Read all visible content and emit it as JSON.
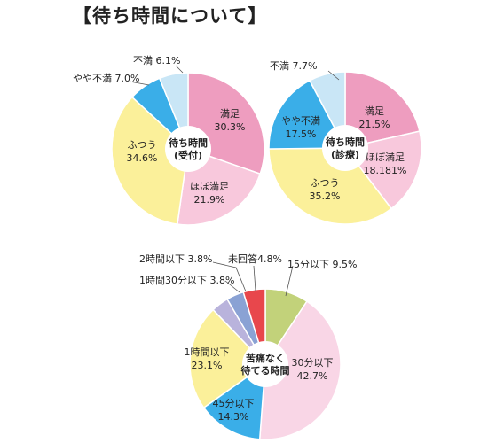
{
  "page": {
    "title": "【待ち時間について】"
  },
  "colors": {
    "manzoku": "#ee9dbf",
    "hobo_manzoku": "#f8c8dc",
    "futsuu": "#fbf09a",
    "yaya_fuman": "#3aaee8",
    "fuman": "#c9e6f6",
    "min15": "#c2d27a",
    "min30": "#f9d6e6",
    "min45": "#3aaee8",
    "hour1": "#fbf09a",
    "hour1_30": "#b9b3dc",
    "hour2": "#8aa2d4",
    "no_answer": "#e8474c",
    "stroke": "#ffffff"
  },
  "chart_data": [
    {
      "type": "pie",
      "center_label": [
        "待ち時間",
        "(受付)"
      ],
      "slices": [
        {
          "label": "満足",
          "value_text": "30.3%",
          "value": 30.3,
          "color_key": "manzoku"
        },
        {
          "label": "ほぼ満足",
          "value_text": "21.9%",
          "value": 21.9,
          "color_key": "hobo_manzoku"
        },
        {
          "label": "ふつう",
          "value_text": "34.6%",
          "value": 34.6,
          "color_key": "futsuu"
        },
        {
          "label": "やや不満",
          "value_text": "7.0%",
          "value": 7.0,
          "color_key": "yaya_fuman"
        },
        {
          "label": "不満",
          "value_text": "6.1%",
          "value": 6.1,
          "color_key": "fuman"
        }
      ]
    },
    {
      "type": "pie",
      "center_label": [
        "待ち時間",
        "(診療)"
      ],
      "slices": [
        {
          "label": "満足",
          "value_text": "21.5%",
          "value": 21.5,
          "color_key": "manzoku"
        },
        {
          "label": "ほぼ満足",
          "value_text": "18.181%",
          "value": 18.181,
          "color_key": "hobo_manzoku"
        },
        {
          "label": "ふつう",
          "value_text": "35.2%",
          "value": 35.2,
          "color_key": "futsuu"
        },
        {
          "label": "やや不満",
          "value_text": "17.5%",
          "value": 17.5,
          "color_key": "yaya_fuman"
        },
        {
          "label": "不満",
          "value_text": "7.7%",
          "value": 7.7,
          "color_key": "fuman"
        }
      ]
    },
    {
      "type": "pie",
      "center_label": [
        "苦痛なく",
        "待てる時間"
      ],
      "slices": [
        {
          "label": "15分以下",
          "value_text": "9.5%",
          "value": 9.5,
          "color_key": "min15"
        },
        {
          "label": "30分以下",
          "value_text": "42.7%",
          "value": 42.7,
          "color_key": "min30"
        },
        {
          "label": "45分以下",
          "value_text": "14.3%",
          "value": 14.3,
          "color_key": "min45"
        },
        {
          "label": "1時間以下",
          "value_text": "23.1%",
          "value": 23.1,
          "color_key": "hour1"
        },
        {
          "label": "1時間30分以下",
          "value_text": "3.8%",
          "value": 3.8,
          "color_key": "hour1_30"
        },
        {
          "label": "2時間以下",
          "value_text": "3.8%",
          "value": 3.8,
          "color_key": "hour2"
        },
        {
          "label": "未回答",
          "value_text": "4.8%",
          "value": 4.8,
          "color_key": "no_answer"
        }
      ]
    }
  ]
}
